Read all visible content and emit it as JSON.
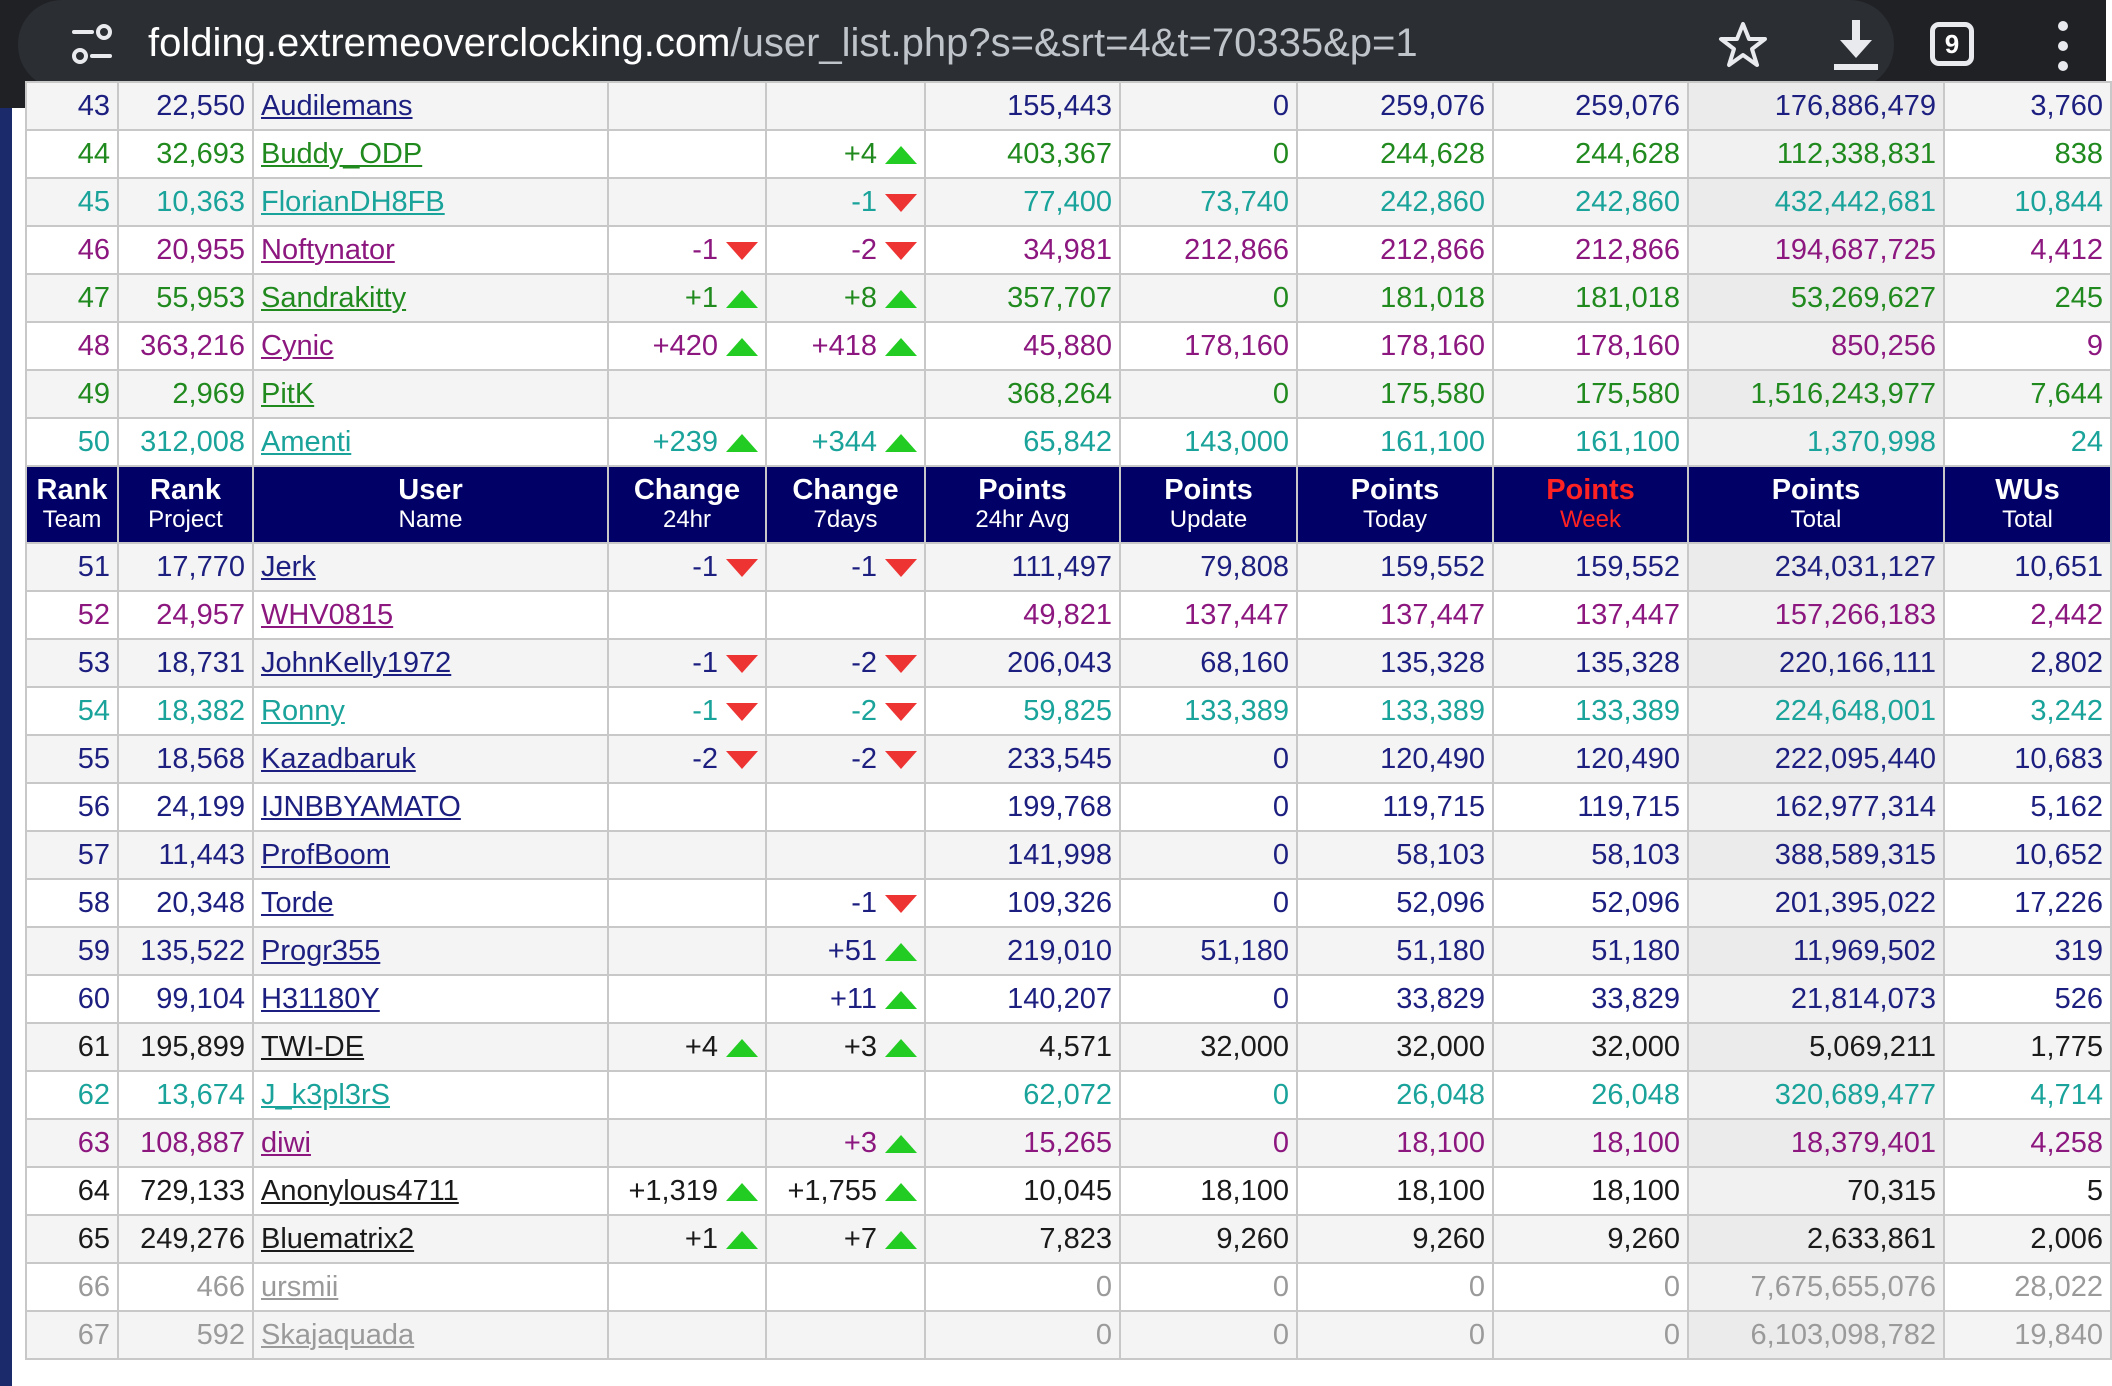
{
  "browser": {
    "url_host": "folding.extremeoverclocking.com",
    "url_path": "/user_list.php?s=&srt=4&t=70335&p=1",
    "tab_count": "9"
  },
  "colors": {
    "header_bg": "#000066",
    "green": "#218a1f",
    "teal": "#1aa39a",
    "purple": "#8c177f",
    "navy": "#1c1f7f",
    "gray": "#9a9a9a"
  },
  "header": {
    "c1": [
      "Rank",
      "Team"
    ],
    "c2": [
      "Rank",
      "Project"
    ],
    "c3": [
      "User",
      "Name"
    ],
    "c4": [
      "Change",
      "24hr"
    ],
    "c5": [
      "Change",
      "7days"
    ],
    "c6": [
      "Points",
      "24hr Avg"
    ],
    "c7": [
      "Points",
      "Update"
    ],
    "c8": [
      "Points",
      "Today"
    ],
    "c9": [
      "Points",
      "Week"
    ],
    "c10": [
      "Points",
      "Total"
    ],
    "c11": [
      "WUs",
      "Total"
    ]
  },
  "rows_top": [
    {
      "rank": "43",
      "proj": "22,550",
      "user": "Audilemans",
      "c24": "",
      "c24dir": "",
      "c7": "",
      "c7dir": "",
      "avg": "155,443",
      "upd": "0",
      "today": "259,076",
      "week": "259,076",
      "total": "176,886,479",
      "wus": "3,760",
      "color": "navy"
    },
    {
      "rank": "44",
      "proj": "32,693",
      "user": "Buddy_ODP",
      "c24": "",
      "c24dir": "",
      "c7": "+4",
      "c7dir": "up",
      "avg": "403,367",
      "upd": "0",
      "today": "244,628",
      "week": "244,628",
      "total": "112,338,831",
      "wus": "838",
      "color": "green"
    },
    {
      "rank": "45",
      "proj": "10,363",
      "user": "FlorianDH8FB",
      "c24": "",
      "c24dir": "",
      "c7": "-1",
      "c7dir": "down",
      "avg": "77,400",
      "upd": "73,740",
      "today": "242,860",
      "week": "242,860",
      "total": "432,442,681",
      "wus": "10,844",
      "color": "teal"
    },
    {
      "rank": "46",
      "proj": "20,955",
      "user": "Noftynator",
      "c24": "-1",
      "c24dir": "down",
      "c7": "-2",
      "c7dir": "down",
      "avg": "34,981",
      "upd": "212,866",
      "today": "212,866",
      "week": "212,866",
      "total": "194,687,725",
      "wus": "4,412",
      "color": "purple"
    },
    {
      "rank": "47",
      "proj": "55,953",
      "user": "Sandrakitty",
      "c24": "+1",
      "c24dir": "up",
      "c7": "+8",
      "c7dir": "up",
      "avg": "357,707",
      "upd": "0",
      "today": "181,018",
      "week": "181,018",
      "total": "53,269,627",
      "wus": "245",
      "color": "green"
    },
    {
      "rank": "48",
      "proj": "363,216",
      "user": "Cynic",
      "c24": "+420",
      "c24dir": "up",
      "c7": "+418",
      "c7dir": "up",
      "avg": "45,880",
      "upd": "178,160",
      "today": "178,160",
      "week": "178,160",
      "total": "850,256",
      "wus": "9",
      "color": "purple"
    },
    {
      "rank": "49",
      "proj": "2,969",
      "user": "PitK",
      "c24": "",
      "c24dir": "",
      "c7": "",
      "c7dir": "",
      "avg": "368,264",
      "upd": "0",
      "today": "175,580",
      "week": "175,580",
      "total": "1,516,243,977",
      "wus": "7,644",
      "color": "green"
    },
    {
      "rank": "50",
      "proj": "312,008",
      "user": "Amenti",
      "c24": "+239",
      "c24dir": "up",
      "c7": "+344",
      "c7dir": "up",
      "avg": "65,842",
      "upd": "143,000",
      "today": "161,100",
      "week": "161,100",
      "total": "1,370,998",
      "wus": "24",
      "color": "teal"
    }
  ],
  "rows_bottom": [
    {
      "rank": "51",
      "proj": "17,770",
      "user": "Jerk",
      "c24": "-1",
      "c24dir": "down",
      "c7": "-1",
      "c7dir": "down",
      "avg": "111,497",
      "upd": "79,808",
      "today": "159,552",
      "week": "159,552",
      "total": "234,031,127",
      "wus": "10,651",
      "color": "navy"
    },
    {
      "rank": "52",
      "proj": "24,957",
      "user": "WHV0815",
      "c24": "",
      "c24dir": "",
      "c7": "",
      "c7dir": "",
      "avg": "49,821",
      "upd": "137,447",
      "today": "137,447",
      "week": "137,447",
      "total": "157,266,183",
      "wus": "2,442",
      "color": "purple"
    },
    {
      "rank": "53",
      "proj": "18,731",
      "user": "JohnKelly1972",
      "c24": "-1",
      "c24dir": "down",
      "c7": "-2",
      "c7dir": "down",
      "avg": "206,043",
      "upd": "68,160",
      "today": "135,328",
      "week": "135,328",
      "total": "220,166,111",
      "wus": "2,802",
      "color": "navy"
    },
    {
      "rank": "54",
      "proj": "18,382",
      "user": "Ronny",
      "c24": "-1",
      "c24dir": "down",
      "c7": "-2",
      "c7dir": "down",
      "avg": "59,825",
      "upd": "133,389",
      "today": "133,389",
      "week": "133,389",
      "total": "224,648,001",
      "wus": "3,242",
      "color": "teal"
    },
    {
      "rank": "55",
      "proj": "18,568",
      "user": "Kazadbaruk",
      "c24": "-2",
      "c24dir": "down",
      "c7": "-2",
      "c7dir": "down",
      "avg": "233,545",
      "upd": "0",
      "today": "120,490",
      "week": "120,490",
      "total": "222,095,440",
      "wus": "10,683",
      "color": "navy"
    },
    {
      "rank": "56",
      "proj": "24,199",
      "user": "IJNBBYAMATO",
      "c24": "",
      "c24dir": "",
      "c7": "",
      "c7dir": "",
      "avg": "199,768",
      "upd": "0",
      "today": "119,715",
      "week": "119,715",
      "total": "162,977,314",
      "wus": "5,162",
      "color": "navy"
    },
    {
      "rank": "57",
      "proj": "11,443",
      "user": "ProfBoom",
      "c24": "",
      "c24dir": "",
      "c7": "",
      "c7dir": "",
      "avg": "141,998",
      "upd": "0",
      "today": "58,103",
      "week": "58,103",
      "total": "388,589,315",
      "wus": "10,652",
      "color": "navy"
    },
    {
      "rank": "58",
      "proj": "20,348",
      "user": "Torde",
      "c24": "",
      "c24dir": "",
      "c7": "-1",
      "c7dir": "down",
      "avg": "109,326",
      "upd": "0",
      "today": "52,096",
      "week": "52,096",
      "total": "201,395,022",
      "wus": "17,226",
      "color": "navy"
    },
    {
      "rank": "59",
      "proj": "135,522",
      "user": "Progr355",
      "c24": "",
      "c24dir": "",
      "c7": "+51",
      "c7dir": "up",
      "avg": "219,010",
      "upd": "51,180",
      "today": "51,180",
      "week": "51,180",
      "total": "11,969,502",
      "wus": "319",
      "color": "navy"
    },
    {
      "rank": "60",
      "proj": "99,104",
      "user": "H31180Y",
      "c24": "",
      "c24dir": "",
      "c7": "+11",
      "c7dir": "up",
      "avg": "140,207",
      "upd": "0",
      "today": "33,829",
      "week": "33,829",
      "total": "21,814,073",
      "wus": "526",
      "color": "navy"
    },
    {
      "rank": "61",
      "proj": "195,899",
      "user": "TWI-DE",
      "c24": "+4",
      "c24dir": "up",
      "c7": "+3",
      "c7dir": "up",
      "avg": "4,571",
      "upd": "32,000",
      "today": "32,000",
      "week": "32,000",
      "total": "5,069,211",
      "wus": "1,775",
      "color": "black"
    },
    {
      "rank": "62",
      "proj": "13,674",
      "user": "J_k3pl3rS",
      "c24": "",
      "c24dir": "",
      "c7": "",
      "c7dir": "",
      "avg": "62,072",
      "upd": "0",
      "today": "26,048",
      "week": "26,048",
      "total": "320,689,477",
      "wus": "4,714",
      "color": "teal"
    },
    {
      "rank": "63",
      "proj": "108,887",
      "user": "diwi",
      "c24": "",
      "c24dir": "",
      "c7": "+3",
      "c7dir": "up",
      "avg": "15,265",
      "upd": "0",
      "today": "18,100",
      "week": "18,100",
      "total": "18,379,401",
      "wus": "4,258",
      "color": "purple"
    },
    {
      "rank": "64",
      "proj": "729,133",
      "user": "Anonylous4711",
      "c24": "+1,319",
      "c24dir": "up",
      "c7": "+1,755",
      "c7dir": "up",
      "avg": "10,045",
      "upd": "18,100",
      "today": "18,100",
      "week": "18,100",
      "total": "70,315",
      "wus": "5",
      "color": "black"
    },
    {
      "rank": "65",
      "proj": "249,276",
      "user": "Bluematrix2",
      "c24": "+1",
      "c24dir": "up",
      "c7": "+7",
      "c7dir": "up",
      "avg": "7,823",
      "upd": "9,260",
      "today": "9,260",
      "week": "9,260",
      "total": "2,633,861",
      "wus": "2,006",
      "color": "black"
    },
    {
      "rank": "66",
      "proj": "466",
      "user": "ursmii",
      "c24": "",
      "c24dir": "",
      "c7": "",
      "c7dir": "",
      "avg": "0",
      "upd": "0",
      "today": "0",
      "week": "0",
      "total": "7,675,655,076",
      "wus": "28,022",
      "color": "gray"
    },
    {
      "rank": "67",
      "proj": "592",
      "user": "Skajaquada",
      "c24": "",
      "c24dir": "",
      "c7": "",
      "c7dir": "",
      "avg": "0",
      "upd": "0",
      "today": "0",
      "week": "0",
      "total": "6,103,098,782",
      "wus": "19,840",
      "color": "gray"
    }
  ]
}
